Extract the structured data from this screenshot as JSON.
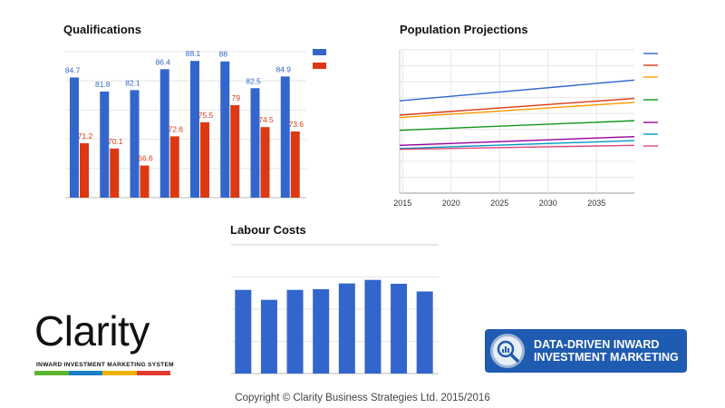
{
  "qualifications": {
    "title": "Qualifications",
    "chart_data": {
      "type": "bar",
      "categories": [
        "",
        "",
        "",
        "",
        "",
        "",
        "",
        ""
      ],
      "series": [
        {
          "values": [
            84.7,
            81.8,
            82.1,
            86.4,
            88.1,
            88,
            82.5,
            84.9
          ],
          "labels": [
            "84.7",
            "81.8",
            "82.1",
            "86.4",
            "88.1",
            "88",
            "82.5",
            "84.9"
          ],
          "color": "#3366cc"
        },
        {
          "values": [
            71.2,
            70.1,
            66.6,
            72.6,
            75.5,
            79,
            74.5,
            73.6
          ],
          "labels": [
            "71.2",
            "70.1",
            "66.6",
            "72.6",
            "75.5",
            "79",
            "74.5",
            "73.6"
          ],
          "color": "#dc3912"
        }
      ],
      "ylim": [
        60,
        90
      ],
      "grid": true,
      "legend": "right"
    }
  },
  "population": {
    "title": "Population Projections",
    "chart_data": {
      "type": "line",
      "x_ticks": [
        "2015",
        "2020",
        "2025",
        "2030",
        "2035"
      ],
      "x": [
        2014.7,
        2038.9
      ],
      "series": [
        {
          "values": [
            5.8,
            7.1
          ],
          "color": "#3366cc"
        },
        {
          "values": [
            4.9,
            5.95
          ],
          "color": "#dc3912"
        },
        {
          "values": [
            4.75,
            5.7
          ],
          "color": "#ff9900"
        },
        {
          "values": [
            3.95,
            4.55
          ],
          "color": "#109618"
        },
        {
          "values": [
            3.0,
            3.55
          ],
          "color": "#990099"
        },
        {
          "values": [
            2.8,
            3.3
          ],
          "color": "#0099c6"
        },
        {
          "values": [
            2.75,
            3.0
          ],
          "color": "#dd4477"
        }
      ],
      "ylim": [
        0,
        9
      ],
      "grid": true,
      "legend": "right"
    }
  },
  "labour": {
    "title": "Labour Costs",
    "chart_data": {
      "type": "bar",
      "categories": [
        "",
        "",
        "",
        "",
        "",
        "",
        "",
        ""
      ],
      "series": [
        {
          "values": [
            26.0,
            22.9,
            26.0,
            26.2,
            28.0,
            29.1,
            27.9,
            25.5
          ],
          "color": "#3366cc"
        }
      ],
      "ylim": [
        0,
        40
      ],
      "grid": true
    }
  },
  "logo": {
    "word": "Clarity",
    "tagline": "INWARD INVESTMENT MARKETING SYSTEM",
    "stripe_colors": [
      "#5cb531",
      "#1a7fc4",
      "#f0b400",
      "#e03a2e"
    ]
  },
  "badge": {
    "line1": "DATA-DRIVEN INWARD",
    "line2": "INVESTMENT MARKETING"
  },
  "footer": {
    "copyright": "Copyright © Clarity Business Strategies Ltd. 2015/2016"
  }
}
